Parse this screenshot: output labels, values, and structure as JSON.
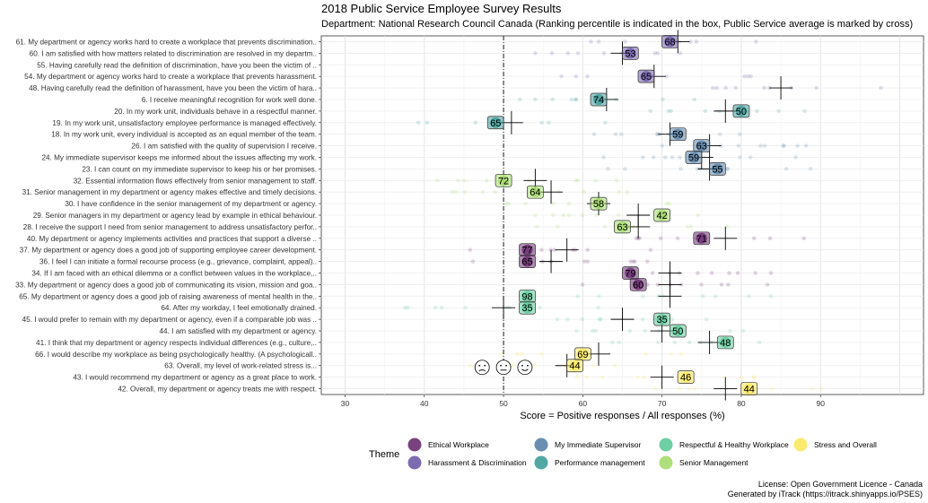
{
  "title": "2018 Public Service Employee Survey Results",
  "subtitle": "Department: National Research Council Canada (Ranking percentile is indicated in the box, Public Service average is marked by cross)",
  "license_line1": "License: Open Government Licence - Canada",
  "license_line2": "Generated by iTrack (https://itrack.shinyapps.io/PSES)",
  "chart_data": {
    "type": "scatter",
    "xlabel": "Score = Positive responses / All responses (%)",
    "xlim": [
      27,
      103
    ],
    "xticks": [
      30,
      40,
      50,
      60,
      70,
      80,
      90
    ],
    "reference_line_x": 50,
    "legend_title": "Theme",
    "themes": [
      {
        "name": "Ethical Workplace",
        "color": "#6a2c70"
      },
      {
        "name": "Harassment & Discrimination",
        "color": "#6e5ca6"
      },
      {
        "name": "My Immediate Supervisor",
        "color": "#5a82a6"
      },
      {
        "name": "Performance management",
        "color": "#3f9d9a"
      },
      {
        "name": "Respectful & Healthy Workplace",
        "color": "#5ec99a"
      },
      {
        "name": "Senior Management",
        "color": "#a6dc6e"
      },
      {
        "name": "Stress and Overall",
        "color": "#f9e85e"
      }
    ],
    "questions": [
      {
        "label": "61. My department or agency works hard to create a workplace that prevents discrimination..",
        "theme": 1,
        "score": 71,
        "rank": "68",
        "avg": 72
      },
      {
        "label": "60. I am satisfied with how matters related to discrimination are resolved in my departm..",
        "theme": 1,
        "score": 66,
        "rank": "53",
        "avg": 65
      },
      {
        "label": "55. Having carefully read the definition of discrimination, have you been the victim of ..",
        "theme": 1,
        "score": null,
        "rank": "",
        "avg": null
      },
      {
        "label": "54. My department or agency works hard to create a workplace that prevents harassment.",
        "theme": 1,
        "score": 68,
        "rank": "65",
        "avg": 69
      },
      {
        "label": "48. Having carefully read the definition of harassment, have you been the victim of hara..",
        "theme": 1,
        "score": null,
        "rank": "",
        "avg": 85
      },
      {
        "label": "6. I receive meaningful recognition for work well done.",
        "theme": 3,
        "score": 62,
        "rank": "74",
        "avg": 63
      },
      {
        "label": "20. In my work unit, individuals behave in a respectful manner.",
        "theme": 3,
        "score": 80,
        "rank": "50",
        "avg": 78
      },
      {
        "label": "19. In my work unit, unsatisfactory employee performance is managed effectively.",
        "theme": 3,
        "score": 49,
        "rank": "65",
        "avg": 51
      },
      {
        "label": "18. In my work unit, every individual is accepted as an equal member of the team.",
        "theme": 2,
        "score": 72,
        "rank": "59",
        "avg": 71
      },
      {
        "label": "26. I am satisfied with the quality of supervision I receive.",
        "theme": 2,
        "score": 75,
        "rank": "63",
        "avg": 76
      },
      {
        "label": "24. My immediate supervisor keeps me informed about the issues affecting my work.",
        "theme": 2,
        "score": 74,
        "rank": "59",
        "avg": 75
      },
      {
        "label": "23. I can count on my immediate supervisor to keep his or her promises.",
        "theme": 2,
        "score": 77,
        "rank": "55",
        "avg": 76
      },
      {
        "label": "32. Essential information flows effectively from senior management to staff.",
        "theme": 5,
        "score": 50,
        "rank": "72",
        "avg": 54
      },
      {
        "label": "31. Senior management in my department or agency makes effective and timely decisions.",
        "theme": 5,
        "score": 54,
        "rank": "64",
        "avg": 56
      },
      {
        "label": "30. I have confidence in the senior management of my department or agency.",
        "theme": 5,
        "score": 62,
        "rank": "58",
        "avg": 62
      },
      {
        "label": "29. Senior managers in my department or agency lead by example in ethical behaviour.",
        "theme": 5,
        "score": 70,
        "rank": "42",
        "avg": 67
      },
      {
        "label": "28. I receive the support I need from senior management to address unsatisfactory perfor..",
        "theme": 5,
        "score": 65,
        "rank": "63",
        "avg": 67
      },
      {
        "label": "40. My department or agency implements activities and practices  that support a diverse ..",
        "theme": 0,
        "score": 75,
        "rank": "71",
        "avg": 78
      },
      {
        "label": "37. My department or agency does a good job of supporting employee career development.",
        "theme": 0,
        "score": 53,
        "rank": "77",
        "avg": 58
      },
      {
        "label": "36. I feel I can initiate a formal recourse process (e.g., grievance, complaint, appeal)..",
        "theme": 0,
        "score": 53,
        "rank": "65",
        "avg": 56
      },
      {
        "label": "34. If I am faced with an ethical dilemma or a conflict between values in the workplace,..",
        "theme": 0,
        "score": 66,
        "rank": "79",
        "avg": 71
      },
      {
        "label": "33. My department or agency does a good job of communicating its vision, mission and goa..",
        "theme": 0,
        "score": 67,
        "rank": "60",
        "avg": 71
      },
      {
        "label": "65. My department or agency does a good job of raising awareness of mental health in the..",
        "theme": 4,
        "score": 53,
        "rank": "98",
        "avg": 71
      },
      {
        "label": "64. After my workday, I feel emotionally drained.",
        "theme": 4,
        "score": 53,
        "rank": "35",
        "avg": 50
      },
      {
        "label": "45. I would prefer to remain with my department or agency, even if a comparable job was ..",
        "theme": 4,
        "score": 70,
        "rank": "35",
        "avg": 65
      },
      {
        "label": "44. I am satisfied with my department or agency.",
        "theme": 4,
        "score": 72,
        "rank": "50",
        "avg": 70
      },
      {
        "label": "41. I think that my department or agency respects individual differences (e.g., culture,..",
        "theme": 4,
        "score": 78,
        "rank": "48",
        "avg": 76
      },
      {
        "label": "66. I would describe my workplace as being psychologically healthy.   (A psychologicall..",
        "theme": 6,
        "score": 60,
        "rank": "69",
        "avg": 62
      },
      {
        "label": "63. Overall, my level of work-related stress is...",
        "theme": 6,
        "score": 59,
        "rank": "44",
        "avg": 58
      },
      {
        "label": "43. I would recommend my department or agency as a great place to work.",
        "theme": 6,
        "score": 73,
        "rank": "46",
        "avg": 70
      },
      {
        "label": "42. Overall, my department or agency treats me with respect.",
        "theme": 6,
        "score": 81,
        "rank": "44",
        "avg": 78
      }
    ],
    "stress_faces": [
      {
        "x": 47.3,
        "mood": "sad"
      },
      {
        "x": 50,
        "mood": "neutral"
      },
      {
        "x": 52.7,
        "mood": "happy"
      }
    ]
  }
}
